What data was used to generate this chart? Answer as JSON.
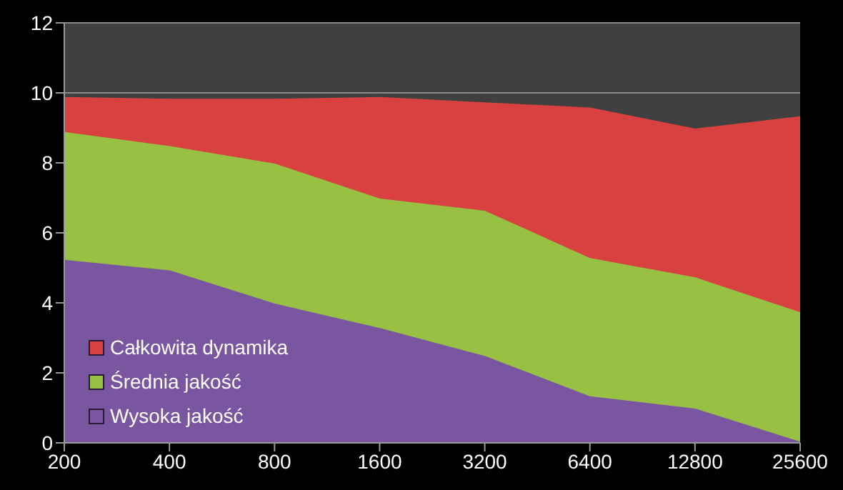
{
  "chart_data": {
    "type": "area",
    "categories": [
      "200",
      "400",
      "800",
      "1600",
      "3200",
      "6400",
      "12800",
      "25600"
    ],
    "series": [
      {
        "name": "Całkowita dynamika",
        "color": "#d94040",
        "values": [
          9.85,
          9.8,
          9.8,
          9.85,
          9.7,
          9.55,
          8.95,
          9.3
        ]
      },
      {
        "name": "Średnia jakość",
        "color": "#98c043",
        "values": [
          8.85,
          8.45,
          7.95,
          6.95,
          6.6,
          5.25,
          4.7,
          3.7
        ]
      },
      {
        "name": "Wysoka jakość",
        "color": "#7a55a0",
        "values": [
          5.2,
          4.9,
          3.95,
          3.25,
          2.45,
          1.3,
          0.95,
          0.0
        ]
      }
    ],
    "ylim": [
      0,
      12
    ],
    "yticks": [
      0,
      2,
      4,
      6,
      8,
      10,
      12
    ],
    "grid": "y",
    "legend": "bottom left"
  }
}
